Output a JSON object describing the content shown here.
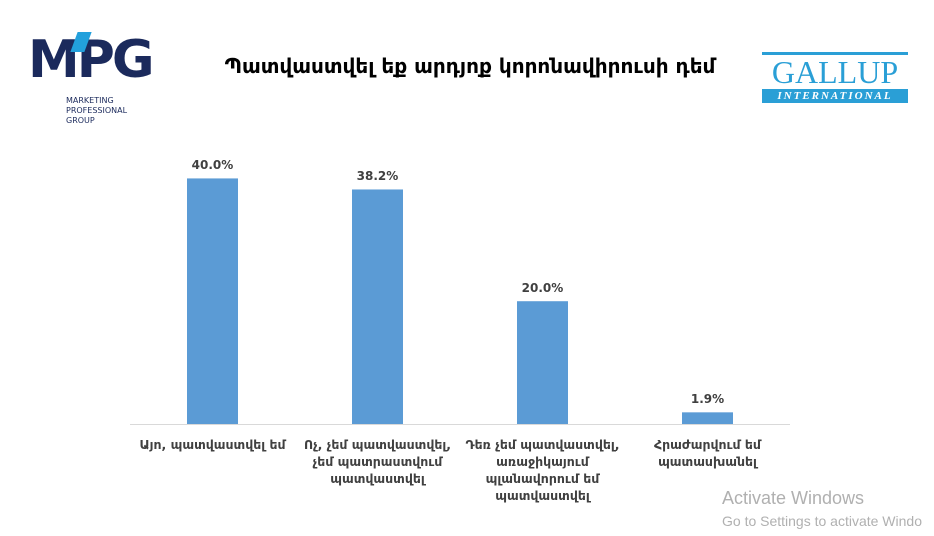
{
  "header": {
    "logo_left": {
      "mark": "MPG",
      "lines": [
        "MARKETING",
        "PROFESSIONAL",
        "GROUP"
      ]
    },
    "logo_right": {
      "name": "GALLUP",
      "sub": "INTERNATIONAL"
    }
  },
  "chart_data": {
    "type": "bar",
    "title": "Պատվաստվել եք արդյոք կորոնավիրուսի դեմ",
    "categories": [
      "Այո, պատվաստվել եմ",
      "Ոչ, չեմ պատվաստվել, չեմ պատրաստվում պատվաստվել",
      "Դեռ չեմ պատվաստվել, առաջիկայում պլանավորում եմ պատվաստվել",
      "Հրաժարվում եմ պատասխանել"
    ],
    "values": [
      40.0,
      38.2,
      20.0,
      1.9
    ],
    "value_labels": [
      "40.0%",
      "38.2%",
      "20.0%",
      "1.9%"
    ],
    "color": "#5b9bd5",
    "ylim": [
      0,
      43
    ]
  },
  "watermark": {
    "title": "Activate Windows",
    "text": "Go to Settings to activate Windo"
  }
}
